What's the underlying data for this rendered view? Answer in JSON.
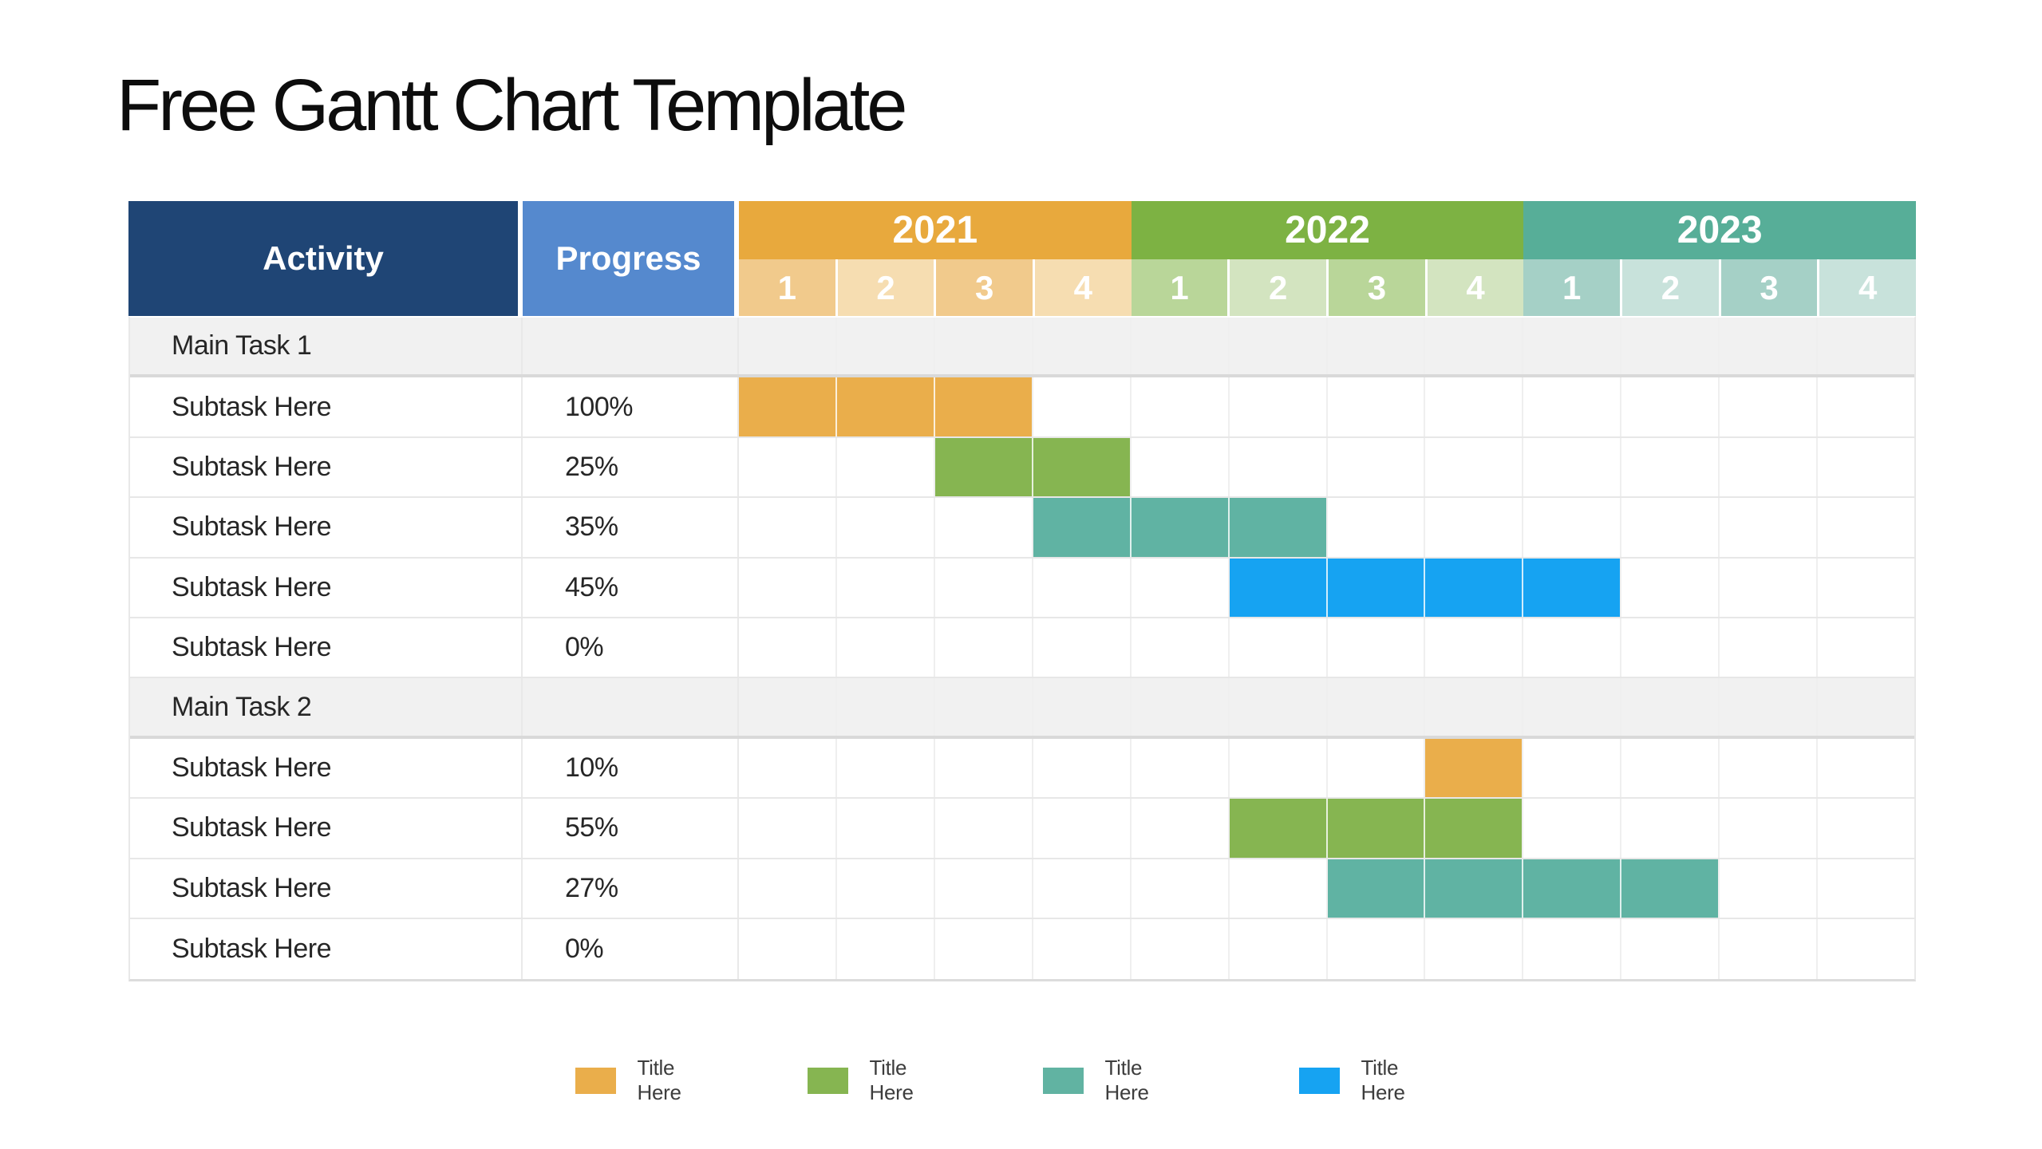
{
  "page": {
    "title": "Free Gantt Chart Template"
  },
  "table": {
    "activity_header": "Activity",
    "progress_header": "Progress",
    "header_colors": {
      "activity_bg": "#1F4575",
      "progress_bg": "#5589CE"
    },
    "years": [
      {
        "label": "2021",
        "color": "#E8A93D",
        "tint_dark": "#F1CA8C",
        "tint_light": "#F6DDB1",
        "quarters": [
          "1",
          "2",
          "3",
          "4"
        ]
      },
      {
        "label": "2022",
        "color": "#7DB243",
        "tint_dark": "#B9D699",
        "tint_light": "#D3E4C0",
        "quarters": [
          "1",
          "2",
          "3",
          "4"
        ]
      },
      {
        "label": "2023",
        "color": "#57AE98",
        "tint_dark": "#A5D0C6",
        "tint_light": "#C8E2DB",
        "quarters": [
          "1",
          "2",
          "3",
          "4"
        ]
      }
    ],
    "bar_colors": {
      "orange": "#EAAE4B",
      "green": "#86B551",
      "teal": "#60B3A3",
      "blue": "#16A3F2"
    }
  },
  "chart_data": {
    "type": "gantt",
    "title": "Free Gantt Chart Template",
    "timeline": {
      "years": [
        "2021",
        "2022",
        "2023"
      ],
      "quarters_per_year": 4
    },
    "columns": [
      "Activity",
      "Progress"
    ],
    "tasks": [
      {
        "name": "Main Task 1",
        "group": true
      },
      {
        "name": "Subtask Here",
        "progress": "100%",
        "start": 0,
        "span": 3,
        "color": "orange"
      },
      {
        "name": "Subtask Here",
        "progress": "25%",
        "start": 2,
        "span": 2,
        "color": "green"
      },
      {
        "name": "Subtask Here",
        "progress": "35%",
        "start": 3,
        "span": 3,
        "color": "teal"
      },
      {
        "name": "Subtask Here",
        "progress": "45%",
        "start": 5,
        "span": 4,
        "color": "blue"
      },
      {
        "name": "Subtask Here",
        "progress": "0%"
      },
      {
        "name": "Main Task 2",
        "group": true
      },
      {
        "name": "Subtask Here",
        "progress": "10%",
        "start": 7,
        "span": 1,
        "color": "orange"
      },
      {
        "name": "Subtask Here",
        "progress": "55%",
        "start": 5,
        "span": 3,
        "color": "green"
      },
      {
        "name": "Subtask Here",
        "progress": "27%",
        "start": 6,
        "span": 4,
        "color": "teal"
      },
      {
        "name": "Subtask Here",
        "progress": "0%"
      }
    ]
  },
  "legend": {
    "items": [
      {
        "label": "Title Here",
        "color": "#EAAE4B"
      },
      {
        "label": "Title Here",
        "color": "#86B551"
      },
      {
        "label": "Title Here",
        "color": "#61B3A2"
      },
      {
        "label": "Title Here",
        "color": "#16A3F2"
      }
    ]
  }
}
